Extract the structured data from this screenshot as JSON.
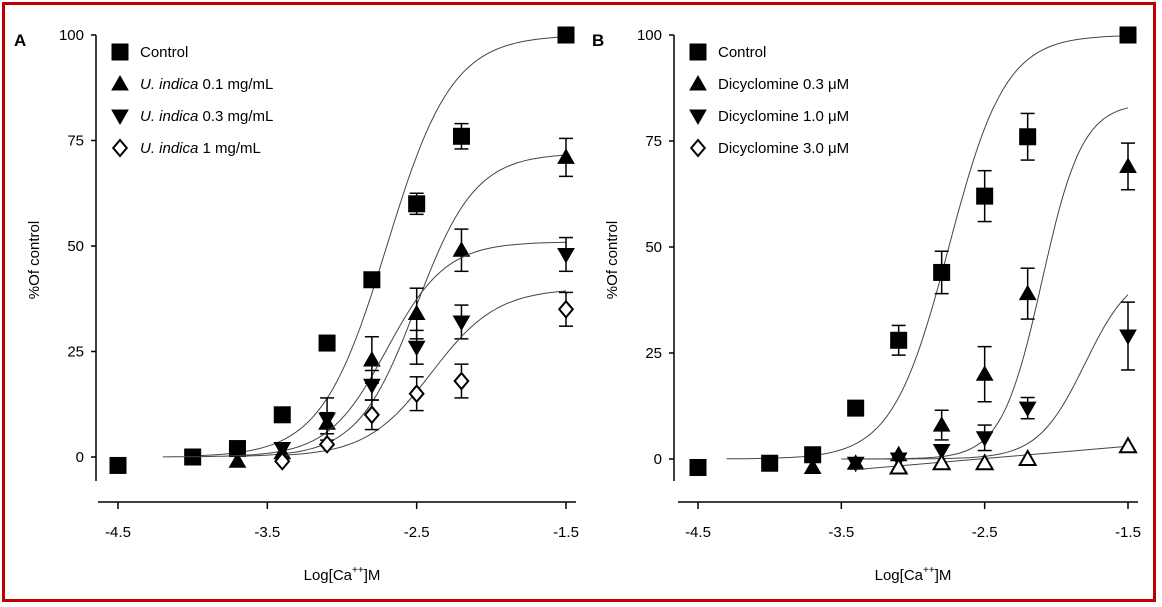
{
  "colors": {
    "frame": "#c00000",
    "ink": "#000000",
    "curve": "#555555"
  },
  "chart_data": [
    {
      "panel": "A",
      "type": "scatter",
      "xlabel_main": "Log[Ca",
      "xlabel_sup": "++",
      "xlabel_tail": "]M",
      "ylabel": "%Of control",
      "xticks": [
        "-4.5",
        "-3.5",
        "-2.5",
        "-1.5"
      ],
      "yticks": [
        "0",
        "25",
        "50",
        "75",
        "100"
      ],
      "xlim": [
        -4.6,
        -1.4
      ],
      "ylim": [
        -5,
        100
      ],
      "grid": false,
      "legend_position": "top-left",
      "series": [
        {
          "name": "Control",
          "name_italic": "",
          "name_tail": "",
          "marker": "square-filled",
          "x": [
            -4.5,
            -4.0,
            -3.7,
            -3.4,
            -3.1,
            -2.8,
            -2.5,
            -2.2,
            -1.5
          ],
          "y": [
            -2,
            0,
            2,
            10,
            27,
            42,
            60,
            76,
            100
          ],
          "err": [
            0,
            0,
            0,
            0,
            0,
            0,
            2.5,
            3,
            0
          ],
          "fit": {
            "top": 100,
            "ec50": -2.7,
            "slope": 0.9,
            "from": -4.0,
            "to": -1.5
          }
        },
        {
          "name": "",
          "name_italic": "U. indica",
          "name_tail": " 0.1 mg/mL",
          "marker": "triangle-up-filled",
          "x": [
            -3.7,
            -3.4,
            -3.1,
            -2.8,
            -2.5,
            -2.2,
            -1.5
          ],
          "y": [
            -1,
            1,
            8,
            23,
            34,
            49,
            71
          ],
          "err": [
            0,
            0,
            2.5,
            5.5,
            6,
            5,
            4.5
          ],
          "fit": {
            "top": 72,
            "ec50": -2.5,
            "slope": 1.0,
            "from": -3.7,
            "to": -1.5
          }
        },
        {
          "name": "",
          "name_italic": "U. indica",
          "name_tail": " 0.3 mg/mL",
          "marker": "triangle-down-filled",
          "x": [
            -3.4,
            -3.1,
            -2.8,
            -2.5,
            -2.2,
            -1.5
          ],
          "y": [
            2,
            9,
            17,
            26,
            32,
            48
          ],
          "err": [
            0,
            5,
            3.5,
            4,
            4,
            4
          ],
          "fit": {
            "top": 51,
            "ec50": -2.7,
            "slope": 1.0,
            "from": -4.2,
            "to": -1.5
          }
        },
        {
          "name": "",
          "name_italic": "U. indica",
          "name_tail": " 1 mg/mL",
          "marker": "diamond-open",
          "x": [
            -3.4,
            -3.1,
            -2.8,
            -2.5,
            -2.2,
            -1.5
          ],
          "y": [
            -1,
            3,
            10,
            15,
            18,
            35
          ],
          "err": [
            0,
            0,
            3.5,
            4,
            4,
            4
          ],
          "fit": {
            "top": 40,
            "ec50": -2.4,
            "slope": 0.9,
            "from": -3.4,
            "to": -1.5
          }
        }
      ]
    },
    {
      "panel": "B",
      "type": "scatter",
      "xlabel_main": "Log[Ca",
      "xlabel_sup": "++",
      "xlabel_tail": "]M",
      "ylabel": "%Of control",
      "xticks": [
        "-4.5",
        "-3.5",
        "-2.5",
        "-1.5"
      ],
      "yticks": [
        "0",
        "25",
        "50",
        "75",
        "100"
      ],
      "xlim": [
        -4.6,
        -1.4
      ],
      "ylim": [
        -5,
        100
      ],
      "grid": false,
      "legend_position": "top-left",
      "series": [
        {
          "name": "Control",
          "name_italic": "",
          "name_tail": "",
          "marker": "square-filled",
          "x": [
            -4.5,
            -4.0,
            -3.7,
            -3.4,
            -3.1,
            -2.8,
            -2.5,
            -2.2,
            -1.5
          ],
          "y": [
            -2,
            -1,
            1,
            12,
            28,
            44,
            62,
            76,
            100
          ],
          "err": [
            0,
            0,
            0,
            0,
            3.5,
            5,
            6,
            5.5,
            0
          ],
          "fit": {
            "top": 100,
            "ec50": -2.75,
            "slope": 1.0,
            "from": -4.3,
            "to": -1.5
          }
        },
        {
          "name": "",
          "name_italic": "",
          "name_tail": "Dicyclomine 0.3 μM",
          "marker": "triangle-up-filled",
          "x": [
            -3.7,
            -3.4,
            -3.1,
            -2.8,
            -2.5,
            -2.2,
            -1.5
          ],
          "y": [
            -2,
            -1,
            1,
            8,
            20,
            39,
            69
          ],
          "err": [
            0,
            0,
            0,
            3.5,
            6.5,
            6,
            5.5
          ],
          "fit": {
            "top": 84,
            "ec50": -2.1,
            "slope": 1.4,
            "from": -3.5,
            "to": -1.5
          }
        },
        {
          "name": "",
          "name_italic": "",
          "name_tail": "Dicyclomine 1.0 μM",
          "marker": "triangle-down-filled",
          "x": [
            -3.4,
            -3.1,
            -2.8,
            -2.5,
            -2.2,
            -1.5
          ],
          "y": [
            -1,
            0,
            2,
            5,
            12,
            29
          ],
          "err": [
            0,
            0,
            0,
            3,
            2.5,
            8
          ],
          "fit": {
            "top": 45,
            "ec50": -1.8,
            "slope": 1.2,
            "from": -3.4,
            "to": -1.5
          }
        },
        {
          "name": "",
          "name_italic": "",
          "name_tail": "Dicyclomine 3.0 μM",
          "marker": "diamond-open",
          "legend_marker": "diamond-open",
          "plot_marker": "triangle-up-open",
          "x": [
            -3.1,
            -2.8,
            -2.5,
            -2.2,
            -1.5
          ],
          "y": [
            -2,
            -1,
            -1,
            0,
            3
          ],
          "err": [
            0,
            0,
            0,
            0,
            0
          ],
          "fit": {
            "linear": true,
            "from": -3.4,
            "to": -1.5,
            "y0": -2.5,
            "y1": 3
          }
        }
      ]
    }
  ]
}
